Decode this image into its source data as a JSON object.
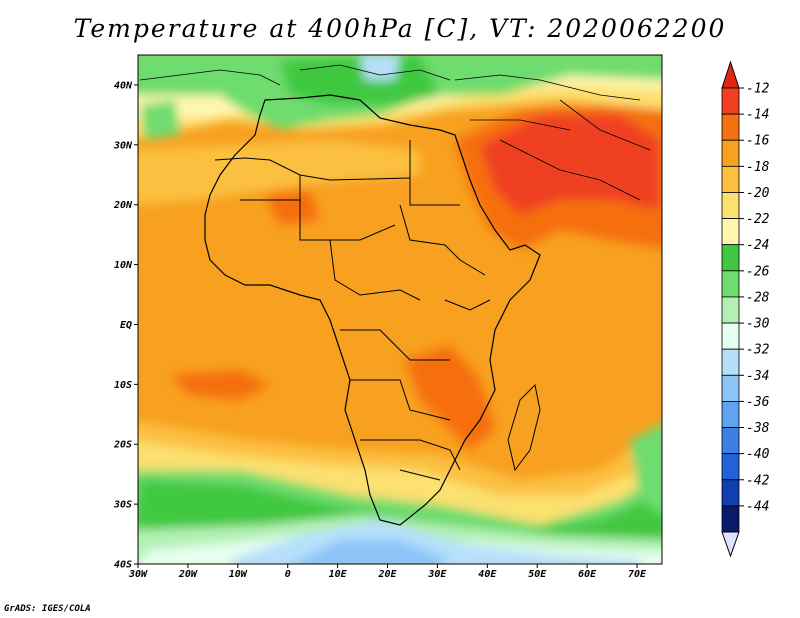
{
  "title": "Temperature at 400hPa [C], VT: 2020062200",
  "credit": "GrADS: IGES/COLA",
  "map": {
    "region": "Africa",
    "variable": "Temperature at 400hPa",
    "units": "C",
    "lat_range": [
      -40,
      45
    ],
    "lon_range": [
      -30,
      75
    ],
    "lat_ticks": [
      {
        "value": 40,
        "label": "40N"
      },
      {
        "value": 30,
        "label": "30N"
      },
      {
        "value": 20,
        "label": "20N"
      },
      {
        "value": 10,
        "label": "10N"
      },
      {
        "value": 0,
        "label": "EQ"
      },
      {
        "value": -10,
        "label": "10S"
      },
      {
        "value": -20,
        "label": "20S"
      },
      {
        "value": -30,
        "label": "30S"
      },
      {
        "value": -40,
        "label": "40S"
      }
    ],
    "lon_ticks": [
      {
        "value": -30,
        "label": "30W"
      },
      {
        "value": -20,
        "label": "20W"
      },
      {
        "value": -10,
        "label": "10W"
      },
      {
        "value": 0,
        "label": "0"
      },
      {
        "value": 10,
        "label": "10E"
      },
      {
        "value": 20,
        "label": "20E"
      },
      {
        "value": 30,
        "label": "30E"
      },
      {
        "value": 40,
        "label": "40E"
      },
      {
        "value": 50,
        "label": "50E"
      },
      {
        "value": 60,
        "label": "60E"
      },
      {
        "value": 70,
        "label": "70E"
      }
    ]
  },
  "colorbar": {
    "levels": [
      {
        "label": "-12",
        "color": "#f04020"
      },
      {
        "label": "-14",
        "color": "#f57010"
      },
      {
        "label": "-16",
        "color": "#f8a020"
      },
      {
        "label": "-18",
        "color": "#fbc040"
      },
      {
        "label": "-20",
        "color": "#fce070"
      },
      {
        "label": "-22",
        "color": "#fff6b0"
      },
      {
        "label": "-24",
        "color": "#40c840"
      },
      {
        "label": "-26",
        "color": "#6edc6e"
      },
      {
        "label": "-28",
        "color": "#b4f0b4"
      },
      {
        "label": "-30",
        "color": "#e6fff0"
      },
      {
        "label": "-32",
        "color": "#b6e0fa"
      },
      {
        "label": "-34",
        "color": "#8cc4f8"
      },
      {
        "label": "-36",
        "color": "#60a4f0"
      },
      {
        "label": "-38",
        "color": "#3c80e6"
      },
      {
        "label": "-40",
        "color": "#2460d8"
      },
      {
        "label": "-42",
        "color": "#1040b0"
      },
      {
        "label": "-44",
        "color": "#081a6a"
      }
    ],
    "top_arrow_color": "#e02810",
    "bottom_arrow_color": "#e0e0ff"
  }
}
